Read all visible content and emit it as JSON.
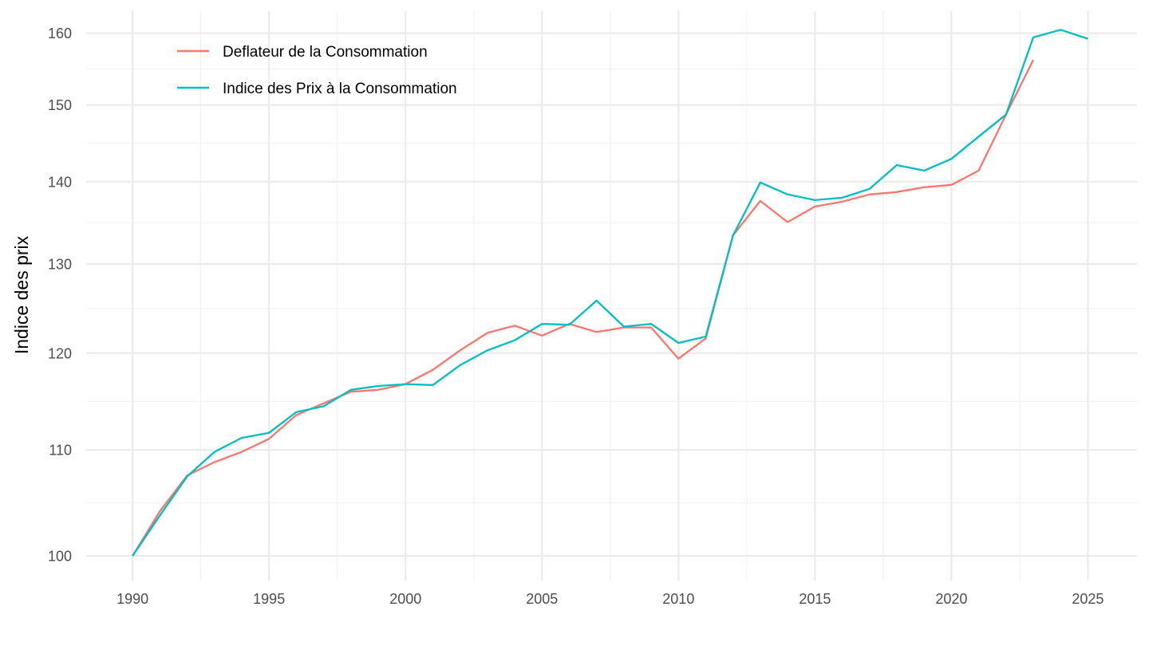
{
  "chart_data": {
    "type": "line",
    "title": "",
    "xlabel": "",
    "ylabel": "Indice des prix",
    "y_scale": "log",
    "xlim": [
      1988.3,
      2026.8
    ],
    "ylim": [
      97.8,
      163.2
    ],
    "x_ticks": [
      1990,
      1995,
      2000,
      2005,
      2010,
      2015,
      2020,
      2025
    ],
    "x_tick_labels": [
      "1990",
      "1995",
      "2000",
      "2005",
      "2010",
      "2015",
      "2020",
      "2025"
    ],
    "y_ticks": [
      100,
      110,
      120,
      130,
      140,
      150,
      160
    ],
    "y_tick_labels": [
      "100",
      "110",
      "120",
      "130",
      "140",
      "150",
      "160"
    ],
    "grid": true,
    "legend_position": "top-left",
    "series": [
      {
        "name": "Deflateur de la Consommation",
        "color": "#F8766D",
        "x": [
          1990,
          1991,
          1992,
          1993,
          1994,
          1995,
          1996,
          1997,
          1998,
          1999,
          2000,
          2001,
          2002,
          2003,
          2004,
          2005,
          2006,
          2007,
          2008,
          2009,
          2010,
          2011,
          2012,
          2013,
          2014,
          2015,
          2016,
          2017,
          2018,
          2019,
          2020,
          2021,
          2022,
          2023
        ],
        "values": [
          100,
          104.1,
          107.5,
          108.8,
          109.8,
          111.1,
          113.5,
          114.7,
          115.9,
          116.1,
          116.7,
          118.2,
          120.3,
          122.2,
          123.0,
          121.9,
          123.2,
          122.3,
          122.8,
          122.8,
          119.4,
          121.6,
          133.4,
          137.6,
          135.0,
          136.9,
          137.5,
          138.4,
          138.7,
          139.3,
          139.6,
          141.4,
          148.7,
          156.2
        ]
      },
      {
        "name": "Indice des Prix à la Consommation",
        "color": "#00BFC4",
        "x": [
          1990,
          1991,
          1992,
          1993,
          1994,
          1995,
          1996,
          1997,
          1998,
          1999,
          2000,
          2001,
          2002,
          2003,
          2004,
          2005,
          2006,
          2007,
          2008,
          2009,
          2010,
          2011,
          2012,
          2013,
          2014,
          2015,
          2016,
          2017,
          2018,
          2019,
          2020,
          2021,
          2022,
          2023,
          2024,
          2025
        ],
        "values": [
          100,
          103.7,
          107.4,
          109.8,
          111.2,
          111.7,
          113.8,
          114.4,
          116.1,
          116.5,
          116.7,
          116.6,
          118.7,
          120.3,
          121.4,
          123.2,
          123.1,
          125.8,
          122.9,
          123.2,
          121.1,
          121.8,
          133.4,
          139.9,
          138.4,
          137.7,
          138.0,
          139.1,
          142.1,
          141.4,
          142.9,
          145.8,
          148.7,
          159.4,
          160.5,
          159.2
        ]
      }
    ]
  }
}
